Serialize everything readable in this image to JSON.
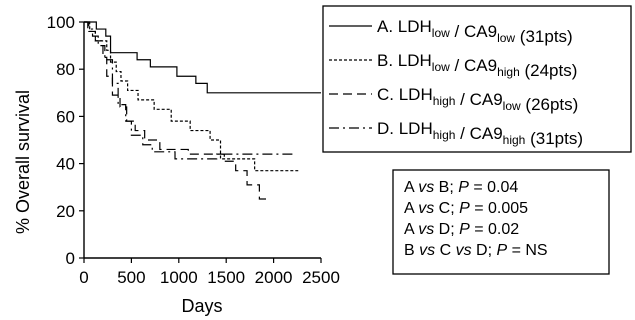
{
  "chart_data": {
    "type": "line",
    "subtype": "kaplan-meier step curve",
    "xlabel": "Days",
    "ylabel": "% Overall survival",
    "xlim": [
      0,
      2500
    ],
    "ylim": [
      0,
      100
    ],
    "xticks": [
      "0",
      "500",
      "1000",
      "1500",
      "2000",
      "2500"
    ],
    "yticks": [
      "0",
      "20",
      "40",
      "60",
      "80",
      "100"
    ],
    "grid": false,
    "legend_position": "top-right",
    "series": [
      {
        "id": "A",
        "name": "A. LDHlow / CA9low (31pts)",
        "label_parts": [
          [
            "A. LDH",
            ""
          ],
          [
            "low",
            "sub"
          ],
          [
            " / CA9",
            ""
          ],
          [
            "low",
            "sub"
          ],
          [
            " (31pts)",
            ""
          ]
        ],
        "dash": "solid",
        "x": [
          0,
          90,
          130,
          230,
          280,
          560,
          700,
          790,
          980,
          1130,
          1180,
          1300,
          2500
        ],
        "y": [
          100,
          100,
          97,
          94,
          87,
          84,
          81,
          81,
          77,
          77,
          74,
          70,
          70
        ]
      },
      {
        "id": "B",
        "name": "B. LDHlow / CA9high (24pts)",
        "label_parts": [
          [
            "B. LDH",
            ""
          ],
          [
            "low",
            "sub"
          ],
          [
            " / CA9",
            ""
          ],
          [
            "high",
            "sub"
          ],
          [
            " (24pts)",
            ""
          ]
        ],
        "dash": "dotted",
        "x": [
          0,
          60,
          120,
          180,
          240,
          280,
          340,
          390,
          460,
          570,
          740,
          920,
          1120,
          1330,
          1440,
          1800,
          2260
        ],
        "y": [
          100,
          96,
          92,
          92,
          88,
          83,
          79,
          75,
          71,
          67,
          63,
          58,
          54,
          50,
          42,
          37,
          37
        ]
      },
      {
        "id": "C",
        "name": "C. LDHhigh / CA9low (26pts)",
        "label_parts": [
          [
            "C. LDH",
            ""
          ],
          [
            "high",
            "sub"
          ],
          [
            " / CA9",
            ""
          ],
          [
            "low",
            "sub"
          ],
          [
            " (26pts)",
            ""
          ]
        ],
        "dash": "dashed",
        "x": [
          0,
          50,
          120,
          200,
          240,
          300,
          380,
          450,
          540,
          640,
          800,
          1100,
          1280,
          1480,
          1600,
          1720,
          1850,
          1950
        ],
        "y": [
          100,
          96,
          92,
          85,
          77,
          69,
          64,
          58,
          54,
          50,
          46,
          44,
          44,
          41,
          37,
          31,
          25,
          25
        ]
      },
      {
        "id": "D",
        "name": "D. LDHhigh / CA9high (31pts)",
        "label_parts": [
          [
            "D. LDH",
            ""
          ],
          [
            "high",
            "sub"
          ],
          [
            " / CA9",
            ""
          ],
          [
            "high",
            "sub"
          ],
          [
            " (31pts)",
            ""
          ]
        ],
        "dash": "dashdot",
        "x": [
          0,
          40,
          90,
          150,
          220,
          300,
          360,
          440,
          500,
          620,
          720,
          960,
          1300,
          1400,
          1480,
          2200
        ],
        "y": [
          100,
          97,
          94,
          90,
          84,
          74,
          65,
          58,
          52,
          48,
          45,
          42,
          42,
          44,
          44,
          44
        ]
      }
    ],
    "annotation_lines": [
      [
        [
          "A ",
          ""
        ],
        [
          "vs",
          "i"
        ],
        [
          " B; ",
          ""
        ],
        [
          "P",
          "i"
        ],
        [
          " = 0.04",
          ""
        ]
      ],
      [
        [
          "A ",
          ""
        ],
        [
          "vs",
          "i"
        ],
        [
          " C; ",
          ""
        ],
        [
          "P",
          "i"
        ],
        [
          " = 0.005",
          ""
        ]
      ],
      [
        [
          "A ",
          ""
        ],
        [
          "vs",
          "i"
        ],
        [
          " D; ",
          ""
        ],
        [
          "P",
          "i"
        ],
        [
          " = 0.02",
          ""
        ]
      ],
      [
        [
          "B ",
          ""
        ],
        [
          "vs",
          "i"
        ],
        [
          " C ",
          ""
        ],
        [
          "vs",
          "i"
        ],
        [
          " D; ",
          ""
        ],
        [
          "P",
          "i"
        ],
        [
          " = NS",
          ""
        ]
      ]
    ]
  }
}
